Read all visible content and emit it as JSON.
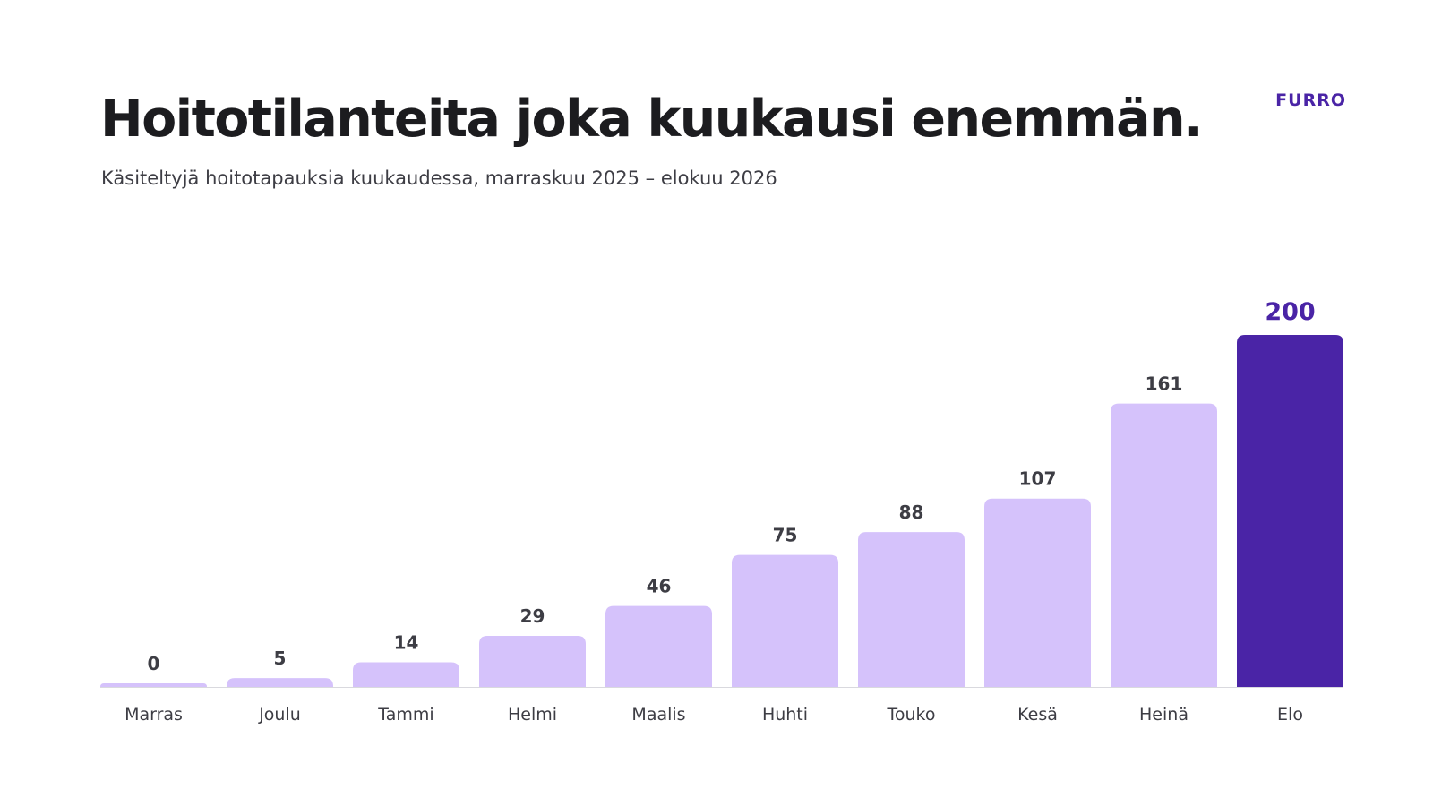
{
  "header": {
    "title": "Hoitotilanteita joka kuukausi enemmän.",
    "subtitle": "Käsiteltyjä hoitotapauksia kuukaudessa, marraskuu 2025 – elokuu 2026",
    "brand": "FURRO"
  },
  "colors": {
    "bar": "#d5c2fb",
    "bar_highlight": "#4a24a6",
    "value_label": "#3d3d44",
    "value_label_highlight": "#4a24a6",
    "category_label": "#3d3d44",
    "baseline": "#d9d9de",
    "brand": "#4a24a6"
  },
  "chart_data": {
    "type": "bar",
    "categories": [
      "Marras",
      "Joulu",
      "Tammi",
      "Helmi",
      "Maalis",
      "Huhti",
      "Touko",
      "Kesä",
      "Heinä",
      "Elo"
    ],
    "values": [
      0,
      5,
      14,
      29,
      46,
      75,
      88,
      107,
      161,
      200
    ],
    "highlight_index": 9,
    "ylim": [
      0,
      200
    ],
    "grid": false,
    "legend": "none",
    "data_labels": true
  }
}
